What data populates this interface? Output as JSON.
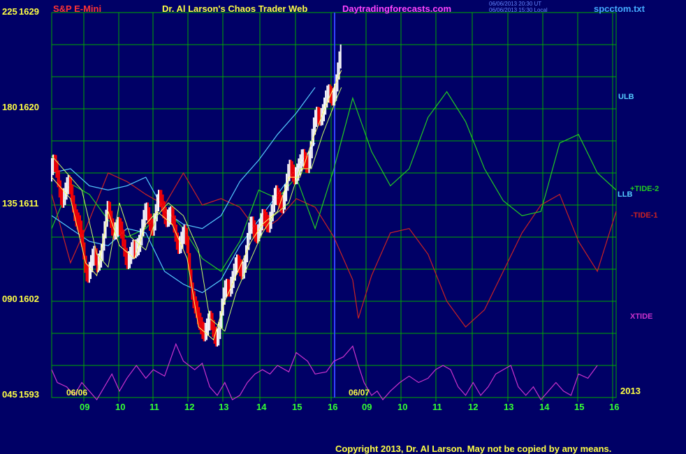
{
  "header": {
    "instrument": "S&P E-Mini",
    "author": "Dr. Al Larson's Chaos Trader Web",
    "site": "Daytradingforecasts.com",
    "timestamp1": "06/06/2013 20:30 UT",
    "timestamp2": "06/06/2013 15:30 Local",
    "file": "spcctom.txt"
  },
  "footer": {
    "copyright": "Copyright 2013, Dr. Al Larson. May not be copied by any means."
  },
  "chart_data": {
    "type": "line",
    "y_axis_labels": [
      {
        "left": "225",
        "price": "1629"
      },
      {
        "left": "180",
        "price": "1620"
      },
      {
        "left": "135",
        "price": "1611"
      },
      {
        "left": "090",
        "price": "1602"
      },
      {
        "left": "045",
        "price": "1593"
      }
    ],
    "x_tick_labels": [
      "09",
      "10",
      "11",
      "12",
      "13",
      "14",
      "15",
      "16",
      "09",
      "10",
      "11",
      "12",
      "13",
      "14",
      "15",
      "16"
    ],
    "date_labels": [
      "06/06",
      "06/07"
    ],
    "year_label": "2013",
    "series_labels": {
      "ulb": "ULB",
      "llb": "LLB",
      "tide2": "+TIDE-2",
      "tide1": "-TIDE-1",
      "xtide": "XTIDE"
    },
    "colors": {
      "background": "#000066",
      "grid": "#00aa00",
      "price_up": "#ffffff",
      "price_down": "#ff0000",
      "channel": "#55ccff",
      "tide2": "#22cc22",
      "tide1": "#cc2222",
      "xtide": "#cc33cc",
      "now_line": "#3344ff"
    },
    "ylim_price": [
      1593,
      1629
    ],
    "series": [
      {
        "name": "XTIDE",
        "values": [
          [
            0,
            58
          ],
          [
            0.3,
            52
          ],
          [
            0.8,
            50
          ],
          [
            1.2,
            46
          ],
          [
            1.6,
            52
          ],
          [
            2,
            48
          ],
          [
            2.4,
            44
          ],
          [
            2.8,
            50
          ],
          [
            3.2,
            56
          ],
          [
            3.6,
            48
          ],
          [
            4,
            54
          ],
          [
            4.5,
            60
          ],
          [
            5,
            54
          ],
          [
            5.4,
            58
          ],
          [
            6,
            55
          ],
          [
            6.6,
            70
          ],
          [
            7,
            62
          ],
          [
            7.6,
            58
          ],
          [
            8,
            61
          ],
          [
            8.4,
            50
          ],
          [
            8.8,
            46
          ],
          [
            9.2,
            52
          ],
          [
            9.6,
            44
          ],
          [
            10,
            46
          ],
          [
            10.4,
            52
          ],
          [
            10.8,
            56
          ],
          [
            11.2,
            58
          ],
          [
            11.6,
            56
          ],
          [
            12,
            60
          ],
          [
            12.6,
            57
          ],
          [
            13,
            66
          ],
          [
            13.6,
            62
          ],
          [
            14,
            56
          ],
          [
            14.6,
            57
          ],
          [
            15,
            62
          ],
          [
            15.5,
            64
          ],
          [
            16,
            69
          ],
          [
            16.3,
            60
          ],
          [
            16.6,
            52
          ],
          [
            17,
            46
          ],
          [
            17.3,
            48
          ],
          [
            17.6,
            44
          ],
          [
            18,
            48
          ],
          [
            18.5,
            52
          ],
          [
            19,
            55
          ],
          [
            19.5,
            52
          ],
          [
            20,
            54
          ],
          [
            20.4,
            58
          ],
          [
            20.8,
            60
          ],
          [
            21.2,
            58
          ],
          [
            21.6,
            50
          ],
          [
            22,
            46
          ],
          [
            22.4,
            52
          ],
          [
            22.8,
            46
          ],
          [
            23.2,
            50
          ],
          [
            23.6,
            56
          ],
          [
            24,
            58
          ],
          [
            24.4,
            60
          ],
          [
            24.8,
            50
          ],
          [
            25.2,
            46
          ],
          [
            25.6,
            50
          ],
          [
            26,
            44
          ],
          [
            26.4,
            48
          ],
          [
            26.8,
            52
          ],
          [
            27.2,
            48
          ],
          [
            27.6,
            46
          ],
          [
            28,
            56
          ],
          [
            28.5,
            54
          ],
          [
            29,
            60
          ]
        ]
      },
      {
        "name": "-TIDE-1",
        "values": [
          [
            0,
            140
          ],
          [
            1,
            108
          ],
          [
            2,
            128
          ],
          [
            3,
            150
          ],
          [
            4,
            146
          ],
          [
            5,
            140
          ],
          [
            6,
            135
          ],
          [
            7,
            150
          ],
          [
            8,
            135
          ],
          [
            9,
            138
          ],
          [
            10,
            134
          ],
          [
            11,
            122
          ],
          [
            12,
            128
          ],
          [
            13,
            138
          ],
          [
            14,
            134
          ],
          [
            15,
            120
          ],
          [
            16,
            100
          ],
          [
            16.3,
            82
          ],
          [
            17,
            102
          ],
          [
            18,
            122
          ],
          [
            19,
            124
          ],
          [
            20,
            112
          ],
          [
            21,
            90
          ],
          [
            22,
            78
          ],
          [
            23,
            86
          ],
          [
            24,
            104
          ],
          [
            25,
            122
          ],
          [
            26,
            135
          ],
          [
            27,
            140
          ],
          [
            28,
            118
          ],
          [
            29,
            104
          ],
          [
            30,
            132
          ]
        ]
      },
      {
        "name": "+TIDE-2",
        "values": [
          [
            0,
            124
          ],
          [
            1,
            145
          ],
          [
            2,
            140
          ],
          [
            3,
            128
          ],
          [
            4,
            120
          ],
          [
            5,
            124
          ],
          [
            6,
            134
          ],
          [
            7,
            124
          ],
          [
            8,
            110
          ],
          [
            9,
            104
          ],
          [
            10,
            118
          ],
          [
            11,
            142
          ],
          [
            12,
            138
          ],
          [
            13,
            148
          ],
          [
            14,
            124
          ],
          [
            15,
            152
          ],
          [
            16,
            185
          ],
          [
            17,
            160
          ],
          [
            18,
            144
          ],
          [
            19,
            152
          ],
          [
            20,
            176
          ],
          [
            21,
            188
          ],
          [
            22,
            174
          ],
          [
            23,
            152
          ],
          [
            24,
            137
          ],
          [
            25,
            130
          ],
          [
            26,
            132
          ],
          [
            27,
            164
          ],
          [
            28,
            168
          ],
          [
            29,
            150
          ],
          [
            30,
            142
          ]
        ]
      },
      {
        "name": "ULB",
        "values": [
          [
            0,
            150
          ],
          [
            1,
            152
          ],
          [
            2,
            144
          ],
          [
            3,
            142
          ],
          [
            4,
            144
          ],
          [
            5,
            148
          ],
          [
            6,
            132
          ],
          [
            7,
            126
          ],
          [
            8,
            124
          ],
          [
            9,
            130
          ],
          [
            10,
            146
          ],
          [
            11,
            156
          ],
          [
            12,
            168
          ],
          [
            13,
            178
          ],
          [
            14,
            190
          ]
        ]
      },
      {
        "name": "LLB",
        "values": [
          [
            0,
            130
          ],
          [
            1,
            124
          ],
          [
            2,
            118
          ],
          [
            3,
            116
          ],
          [
            4,
            124
          ],
          [
            5,
            122
          ],
          [
            6,
            104
          ],
          [
            7,
            98
          ],
          [
            8,
            94
          ],
          [
            9,
            100
          ],
          [
            10,
            116
          ],
          [
            11,
            128
          ],
          [
            12,
            140
          ],
          [
            13,
            152
          ],
          [
            14,
            164
          ]
        ]
      }
    ]
  }
}
